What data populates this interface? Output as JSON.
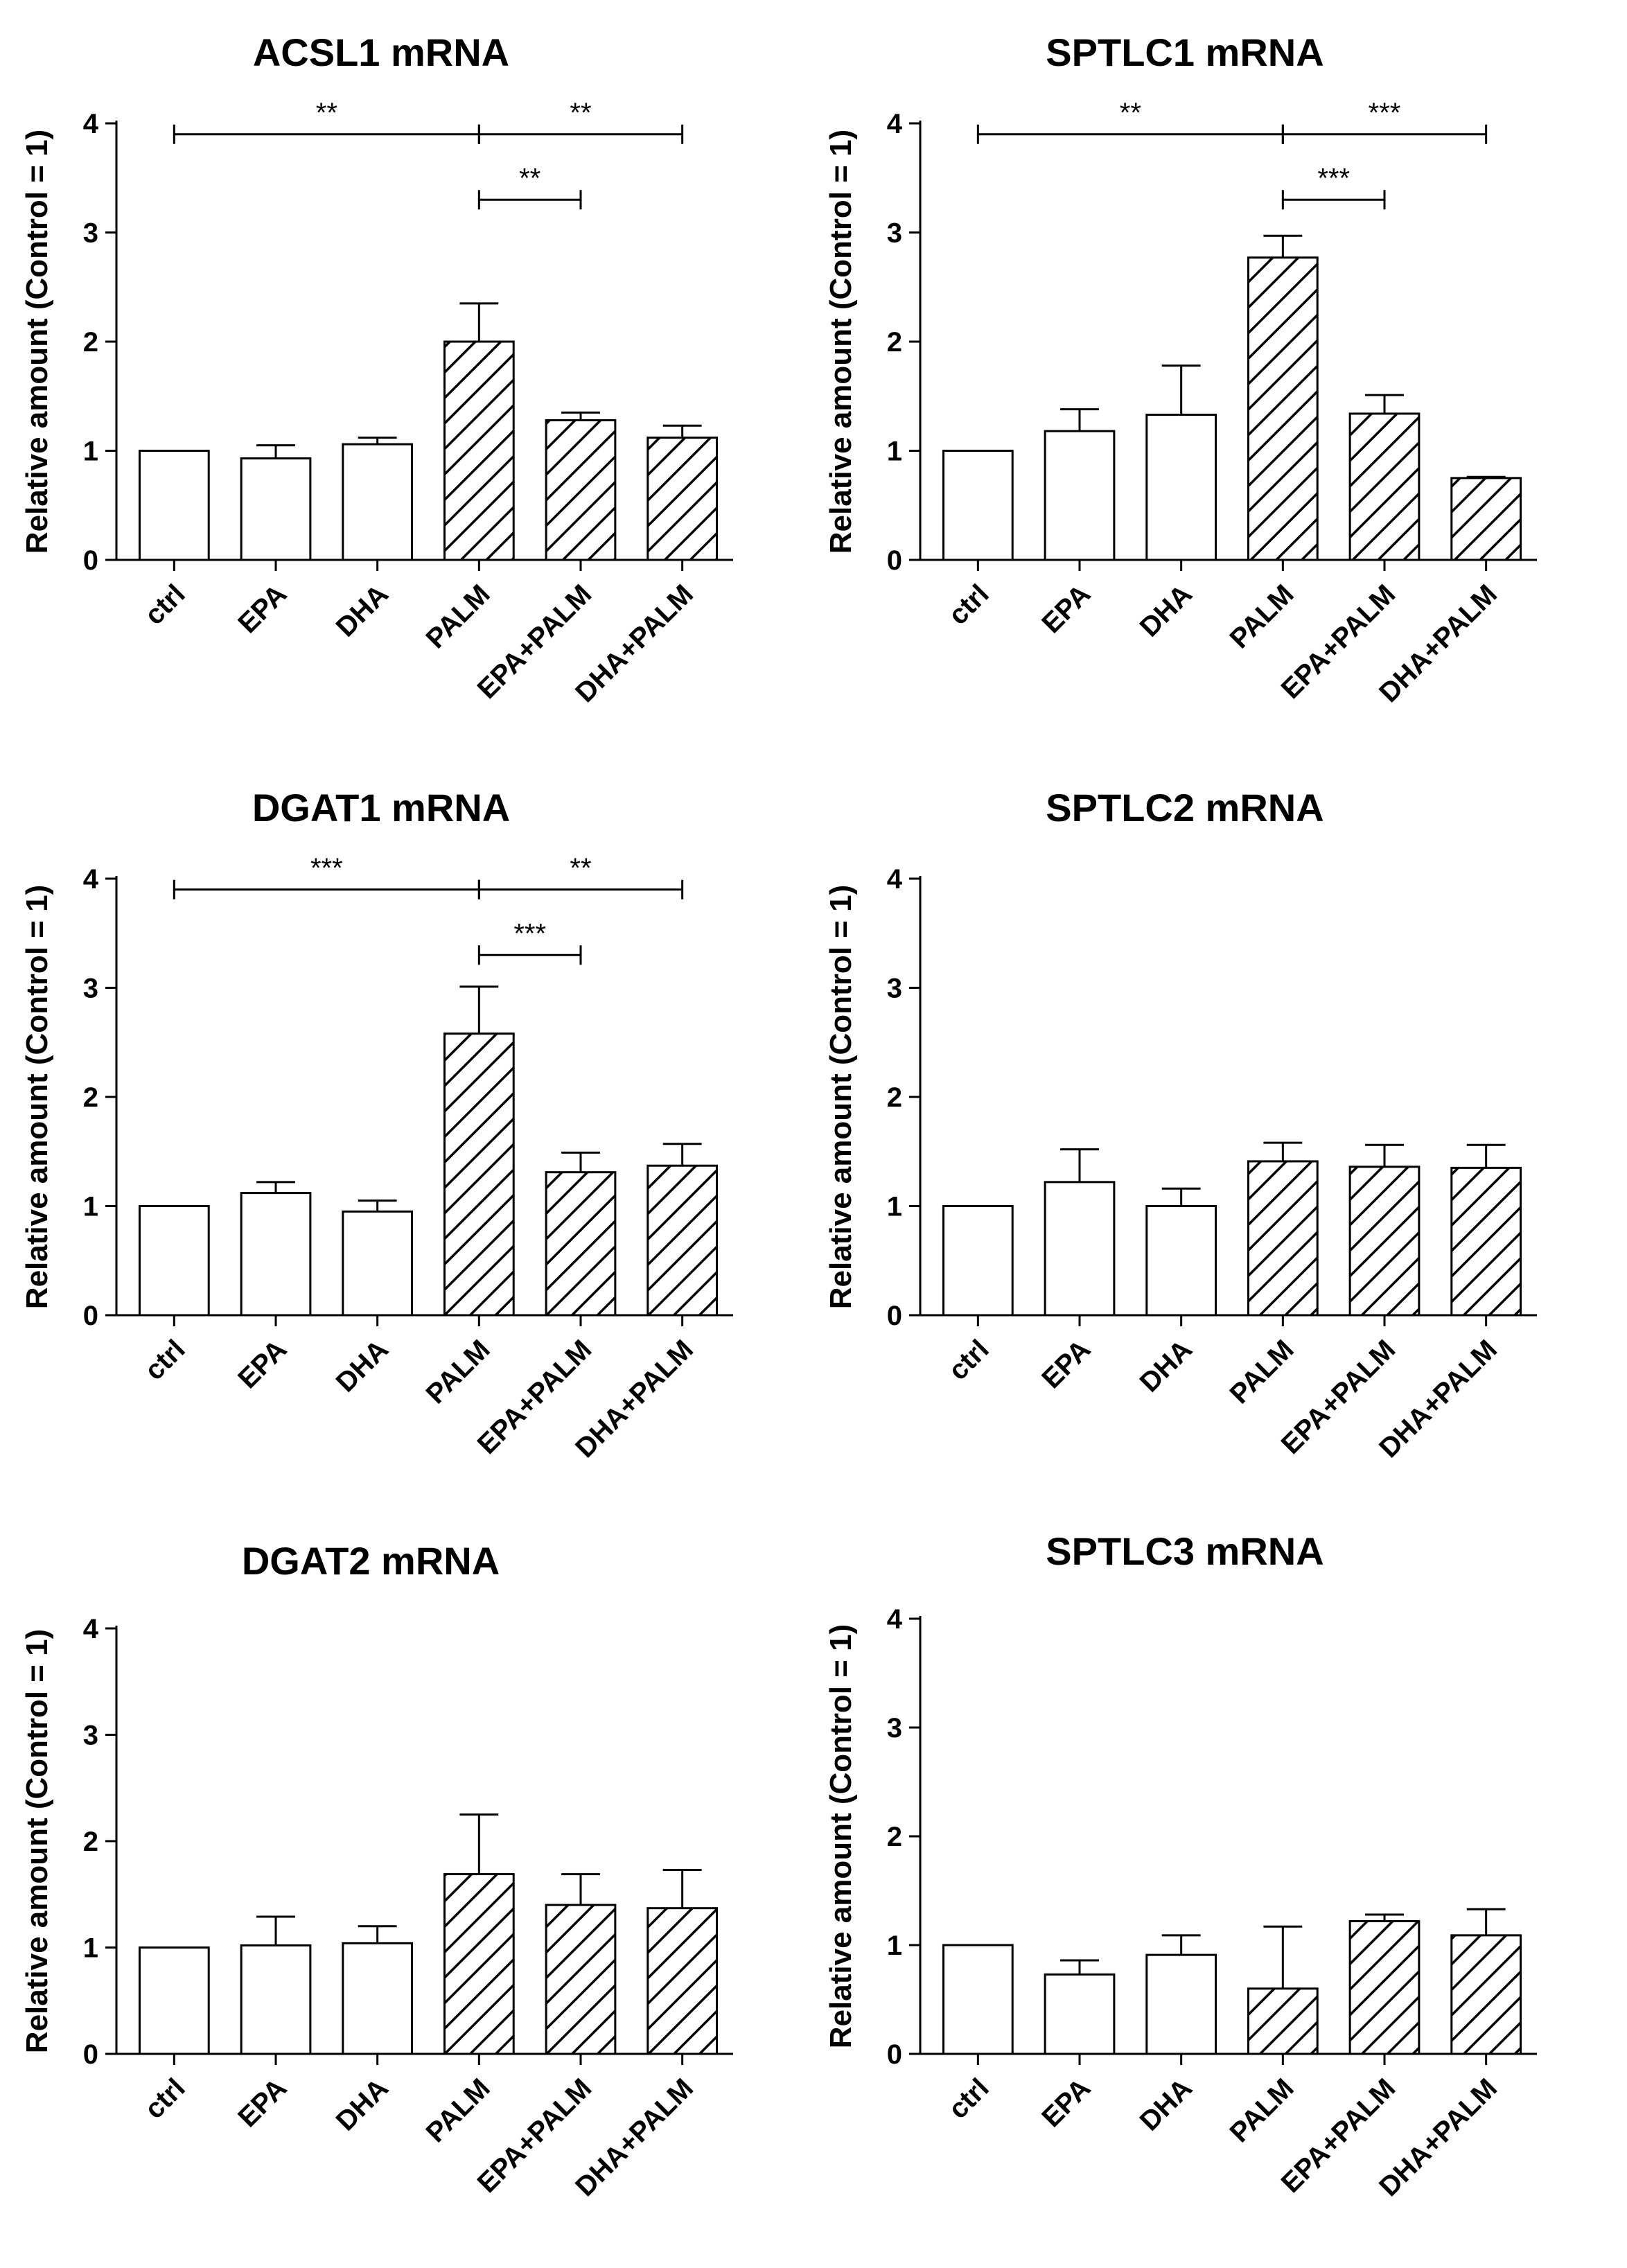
{
  "chart_data": [
    {
      "type": "bar",
      "title": "ACSL1  mRNA",
      "ylabel": "Relative amount (Control = 1)",
      "xlabel": "",
      "ylim": [
        0,
        4
      ],
      "yticks": [
        "0",
        "1",
        "2",
        "3",
        "4"
      ],
      "categories": [
        "ctrl",
        "EPA",
        "DHA",
        "PALM",
        "EPA+PALM",
        "DHA+PALM"
      ],
      "values": [
        1.0,
        0.93,
        1.06,
        2.0,
        1.28,
        1.12
      ],
      "errors": [
        0.0,
        0.12,
        0.06,
        0.35,
        0.07,
        0.11
      ],
      "hatched": [
        false,
        false,
        false,
        true,
        true,
        true
      ],
      "significance": [
        {
          "from": 0,
          "to": 3,
          "level": 3.9,
          "label": "**"
        },
        {
          "from": 3,
          "to": 5,
          "level": 3.9,
          "label": "**"
        },
        {
          "from": 3,
          "to": 4,
          "level": 3.3,
          "label": "**"
        }
      ]
    },
    {
      "type": "bar",
      "title": "SPTLC1  mRNA",
      "ylabel": "Relative amount (Control = 1)",
      "xlabel": "",
      "ylim": [
        0,
        4
      ],
      "yticks": [
        "0",
        "1",
        "2",
        "3",
        "4"
      ],
      "categories": [
        "ctrl",
        "EPA",
        "DHA",
        "PALM",
        "EPA+PALM",
        "DHA+PALM"
      ],
      "values": [
        1.0,
        1.18,
        1.33,
        2.77,
        1.34,
        0.75
      ],
      "errors": [
        0.0,
        0.2,
        0.45,
        0.2,
        0.17,
        0.01
      ],
      "hatched": [
        false,
        false,
        false,
        true,
        true,
        true
      ],
      "significance": [
        {
          "from": 0,
          "to": 3,
          "level": 3.9,
          "label": "**"
        },
        {
          "from": 3,
          "to": 5,
          "level": 3.9,
          "label": "***"
        },
        {
          "from": 3,
          "to": 4,
          "level": 3.3,
          "label": "***"
        }
      ]
    },
    {
      "type": "bar",
      "title": "DGAT1  mRNA",
      "ylabel": "Relative amount (Control = 1)",
      "xlabel": "",
      "ylim": [
        0,
        4
      ],
      "yticks": [
        "0",
        "1",
        "2",
        "3",
        "4"
      ],
      "categories": [
        "ctrl",
        "EPA",
        "DHA",
        "PALM",
        "EPA+PALM",
        "DHA+PALM"
      ],
      "values": [
        1.0,
        1.12,
        0.95,
        2.58,
        1.31,
        1.37
      ],
      "errors": [
        0.0,
        0.1,
        0.1,
        0.43,
        0.18,
        0.2
      ],
      "hatched": [
        false,
        false,
        false,
        true,
        true,
        true
      ],
      "significance": [
        {
          "from": 0,
          "to": 3,
          "level": 3.9,
          "label": "***"
        },
        {
          "from": 3,
          "to": 5,
          "level": 3.9,
          "label": "**"
        },
        {
          "from": 3,
          "to": 4,
          "level": 3.3,
          "label": "***"
        }
      ]
    },
    {
      "type": "bar",
      "title": "SPTLC2  mRNA",
      "ylabel": "Relative amount (Control = 1)",
      "xlabel": "",
      "ylim": [
        0,
        4
      ],
      "yticks": [
        "0",
        "1",
        "2",
        "3",
        "4"
      ],
      "categories": [
        "ctrl",
        "EPA",
        "DHA",
        "PALM",
        "EPA+PALM",
        "DHA+PALM"
      ],
      "values": [
        1.0,
        1.22,
        1.0,
        1.41,
        1.36,
        1.35
      ],
      "errors": [
        0.0,
        0.3,
        0.16,
        0.17,
        0.2,
        0.21
      ],
      "hatched": [
        false,
        false,
        false,
        true,
        true,
        true
      ],
      "significance": []
    },
    {
      "type": "bar",
      "title": "DGAT2  mRNA",
      "ylabel": "Relative amount (Control = 1)",
      "xlabel": "",
      "ylim": [
        0,
        4
      ],
      "yticks": [
        "0",
        "1",
        "2",
        "3",
        "4"
      ],
      "categories": [
        "ctrl",
        "EPA",
        "DHA",
        "PALM",
        "EPA+PALM",
        "DHA+PALM"
      ],
      "values": [
        1.0,
        1.02,
        1.04,
        1.69,
        1.4,
        1.37
      ],
      "errors": [
        0.0,
        0.27,
        0.16,
        0.56,
        0.29,
        0.36
      ],
      "hatched": [
        false,
        false,
        false,
        true,
        true,
        true
      ],
      "significance": []
    },
    {
      "type": "bar",
      "title": "SPTLC3  mRNA",
      "ylabel": "Relative amount (Control = 1)",
      "xlabel": "",
      "ylim": [
        0,
        4
      ],
      "yticks": [
        "0",
        "1",
        "2",
        "3",
        "4"
      ],
      "categories": [
        "ctrl",
        "EPA",
        "DHA",
        "PALM",
        "EPA+PALM",
        "DHA+PALM"
      ],
      "values": [
        1.0,
        0.73,
        0.91,
        0.6,
        1.22,
        1.09
      ],
      "errors": [
        0.0,
        0.13,
        0.18,
        0.57,
        0.06,
        0.24
      ],
      "hatched": [
        false,
        false,
        false,
        true,
        true,
        true
      ],
      "significance": []
    }
  ]
}
